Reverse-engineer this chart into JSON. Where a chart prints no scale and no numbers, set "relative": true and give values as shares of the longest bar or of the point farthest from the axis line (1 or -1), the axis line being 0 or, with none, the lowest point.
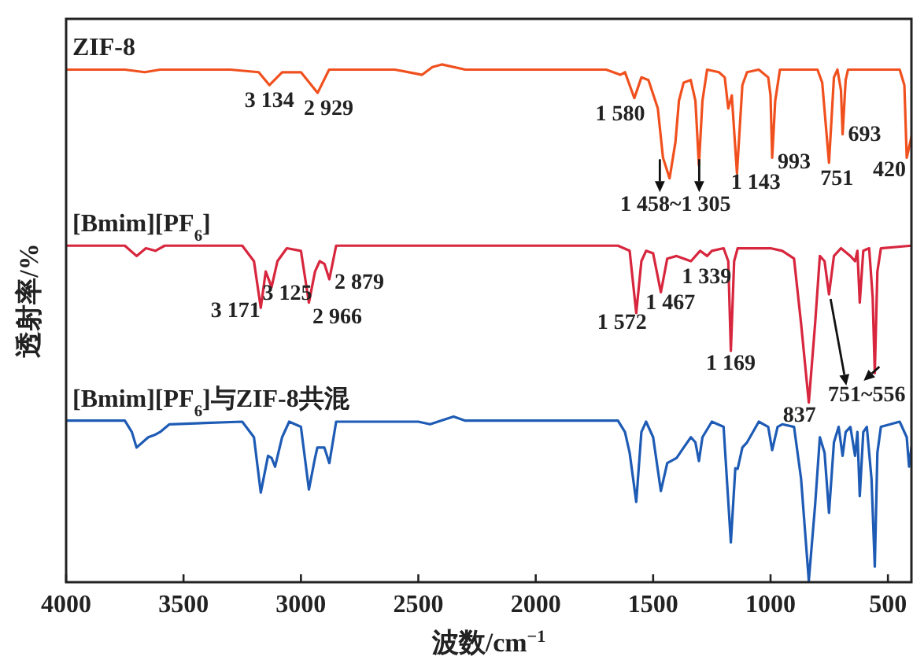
{
  "chart_data": {
    "type": "line",
    "relative": true,
    "xlabel": "波数/cm$^{−1}$",
    "ylabel": "透射率/%",
    "xlim": [
      4000,
      400
    ],
    "xticks": [
      4000,
      3500,
      3000,
      2500,
      2000,
      1500,
      1000,
      500
    ],
    "series": [
      {
        "name": "ZIF-8",
        "color": "#f0501e",
        "x": [
          4000,
          3750,
          3665,
          3600,
          3300,
          3180,
          3134,
          3080,
          3000,
          2929,
          2880,
          2600,
          2484,
          2440,
          2400,
          2300,
          1700,
          1640,
          1620,
          1580,
          1550,
          1520,
          1480,
          1458,
          1430,
          1405,
          1390,
          1370,
          1340,
          1320,
          1305,
          1290,
          1270,
          1220,
          1195,
          1180,
          1165,
          1143,
          1120,
          1100,
          1050,
          1010,
          1000,
          993,
          980,
          960,
          800,
          780,
          751,
          730,
          715,
          700,
          693,
          680,
          670,
          450,
          430,
          420,
          400
        ],
        "values": [
          0.99,
          0.99,
          0.985,
          0.99,
          0.99,
          0.985,
          0.96,
          0.985,
          0.985,
          0.945,
          0.99,
          0.99,
          0.98,
          0.995,
          1.0,
          0.99,
          0.99,
          0.98,
          0.985,
          0.935,
          0.975,
          0.97,
          0.915,
          0.82,
          0.78,
          0.85,
          0.93,
          0.965,
          0.97,
          0.93,
          0.805,
          0.93,
          0.99,
          0.985,
          0.975,
          0.915,
          0.94,
          0.79,
          0.96,
          0.985,
          0.99,
          0.975,
          0.94,
          0.82,
          0.93,
          0.99,
          0.99,
          0.965,
          0.81,
          0.975,
          0.99,
          0.95,
          0.865,
          0.97,
          0.99,
          0.99,
          0.96,
          0.82,
          0.86
        ]
      },
      {
        "name": "[Bmim][PF$_{6}$]",
        "color": "#d7263d",
        "x": [
          4000,
          3750,
          3700,
          3660,
          3620,
          3580,
          3250,
          3200,
          3171,
          3150,
          3125,
          3100,
          3060,
          3000,
          2966,
          2940,
          2920,
          2900,
          2879,
          2850,
          1650,
          1600,
          1572,
          1550,
          1530,
          1500,
          1467,
          1440,
          1400,
          1339,
          1300,
          1270,
          1250,
          1200,
          1180,
          1169,
          1155,
          1140,
          1000,
          950,
          900,
          870,
          837,
          810,
          790,
          770,
          751,
          730,
          700,
          660,
          640,
          630,
          620,
          605,
          580,
          565,
          556,
          545,
          530,
          400
        ],
        "values": [
          0.65,
          0.65,
          0.63,
          0.645,
          0.64,
          0.65,
          0.65,
          0.62,
          0.53,
          0.6,
          0.57,
          0.62,
          0.645,
          0.64,
          0.54,
          0.6,
          0.62,
          0.615,
          0.585,
          0.65,
          0.65,
          0.64,
          0.52,
          0.62,
          0.64,
          0.635,
          0.56,
          0.625,
          0.63,
          0.62,
          0.64,
          0.63,
          0.64,
          0.645,
          0.62,
          0.447,
          0.62,
          0.645,
          0.645,
          0.64,
          0.625,
          0.5,
          0.347,
          0.5,
          0.63,
          0.62,
          0.556,
          0.63,
          0.645,
          0.63,
          0.62,
          0.64,
          0.54,
          0.64,
          0.645,
          0.55,
          0.404,
          0.6,
          0.645,
          0.65
        ]
      },
      {
        "name": "[Bmim][PF$_{6}$]与ZIF-8共混",
        "color": "#1e5bb5",
        "x": [
          4000,
          3750,
          3720,
          3700,
          3650,
          3620,
          3600,
          3560,
          3250,
          3200,
          3171,
          3140,
          3125,
          3110,
          3080,
          3050,
          3000,
          2966,
          2940,
          2930,
          2900,
          2879,
          2850,
          2500,
          2450,
          2350,
          2300,
          1650,
          1620,
          1600,
          1572,
          1550,
          1530,
          1500,
          1467,
          1440,
          1400,
          1370,
          1339,
          1320,
          1305,
          1290,
          1250,
          1200,
          1169,
          1150,
          1140,
          1120,
          1100,
          1050,
          1010,
          993,
          970,
          950,
          900,
          870,
          837,
          810,
          790,
          770,
          751,
          730,
          710,
          693,
          680,
          660,
          640,
          630,
          620,
          605,
          590,
          570,
          556,
          545,
          530,
          450,
          420,
          410,
          400
        ],
        "values": [
          0.312,
          0.312,
          0.29,
          0.26,
          0.28,
          0.285,
          0.29,
          0.305,
          0.31,
          0.28,
          0.173,
          0.244,
          0.24,
          0.223,
          0.28,
          0.31,
          0.3,
          0.179,
          0.24,
          0.26,
          0.26,
          0.23,
          0.31,
          0.31,
          0.305,
          0.32,
          0.312,
          0.312,
          0.29,
          0.25,
          0.155,
          0.29,
          0.31,
          0.28,
          0.176,
          0.23,
          0.24,
          0.26,
          0.28,
          0.27,
          0.234,
          0.28,
          0.31,
          0.3,
          0.077,
          0.22,
          0.219,
          0.26,
          0.27,
          0.31,
          0.3,
          0.255,
          0.3,
          0.305,
          0.3,
          0.2,
          0.003,
          0.15,
          0.28,
          0.25,
          0.134,
          0.27,
          0.3,
          0.244,
          0.29,
          0.3,
          0.244,
          0.29,
          0.166,
          0.29,
          0.3,
          0.2,
          0.03,
          0.25,
          0.3,
          0.31,
          0.28,
          0.223,
          0.26
        ]
      }
    ],
    "annotations": [
      {
        "text": "3 134",
        "x": 3134,
        "y": 0.96
      },
      {
        "text": "2 929",
        "x": 2929,
        "y": 0.945
      },
      {
        "text": "1 580",
        "x": 1580,
        "y": 0.935
      },
      {
        "text": "1 458~1 305",
        "x": 1458,
        "y": 0.82
      },
      {
        "text": "1 143",
        "x": 1143,
        "y": 0.79
      },
      {
        "text": "993",
        "x": 993,
        "y": 0.82
      },
      {
        "text": "751",
        "x": 751,
        "y": 0.81
      },
      {
        "text": "693",
        "x": 693,
        "y": 0.865
      },
      {
        "text": "420",
        "x": 420,
        "y": 0.82
      },
      {
        "text": "3 171",
        "x": 3171,
        "y": 0.53
      },
      {
        "text": "3 125",
        "x": 3125,
        "y": 0.57
      },
      {
        "text": "2 966",
        "x": 2966,
        "y": 0.54
      },
      {
        "text": "2 879",
        "x": 2879,
        "y": 0.585
      },
      {
        "text": "1 572",
        "x": 1572,
        "y": 0.52
      },
      {
        "text": "1 467",
        "x": 1467,
        "y": 0.56
      },
      {
        "text": "1 339",
        "x": 1339,
        "y": 0.62
      },
      {
        "text": "1 169",
        "x": 1169,
        "y": 0.447
      },
      {
        "text": "837",
        "x": 837,
        "y": 0.347
      },
      {
        "text": "751~556",
        "x": 751,
        "y": 0.556
      }
    ]
  }
}
